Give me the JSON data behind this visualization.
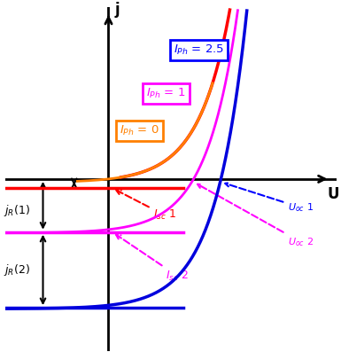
{
  "xlim": [
    -1.65,
    3.65
  ],
  "ylim": [
    -3.4,
    3.4
  ],
  "I0": 0.07,
  "Vt": 0.5,
  "jsc1": -0.18,
  "jsc_mag": -1.05,
  "jsc2": -2.55,
  "c_orange": "#FF8000",
  "c_magenta": "#FF00FF",
  "c_blue": "#0000DD",
  "c_red": "#FF0000",
  "c_black": "#000000",
  "flat_xmin": -1.65,
  "flat_xmax": 1.2,
  "diode_vmin": 0.2,
  "diode_vmax": 3.5
}
